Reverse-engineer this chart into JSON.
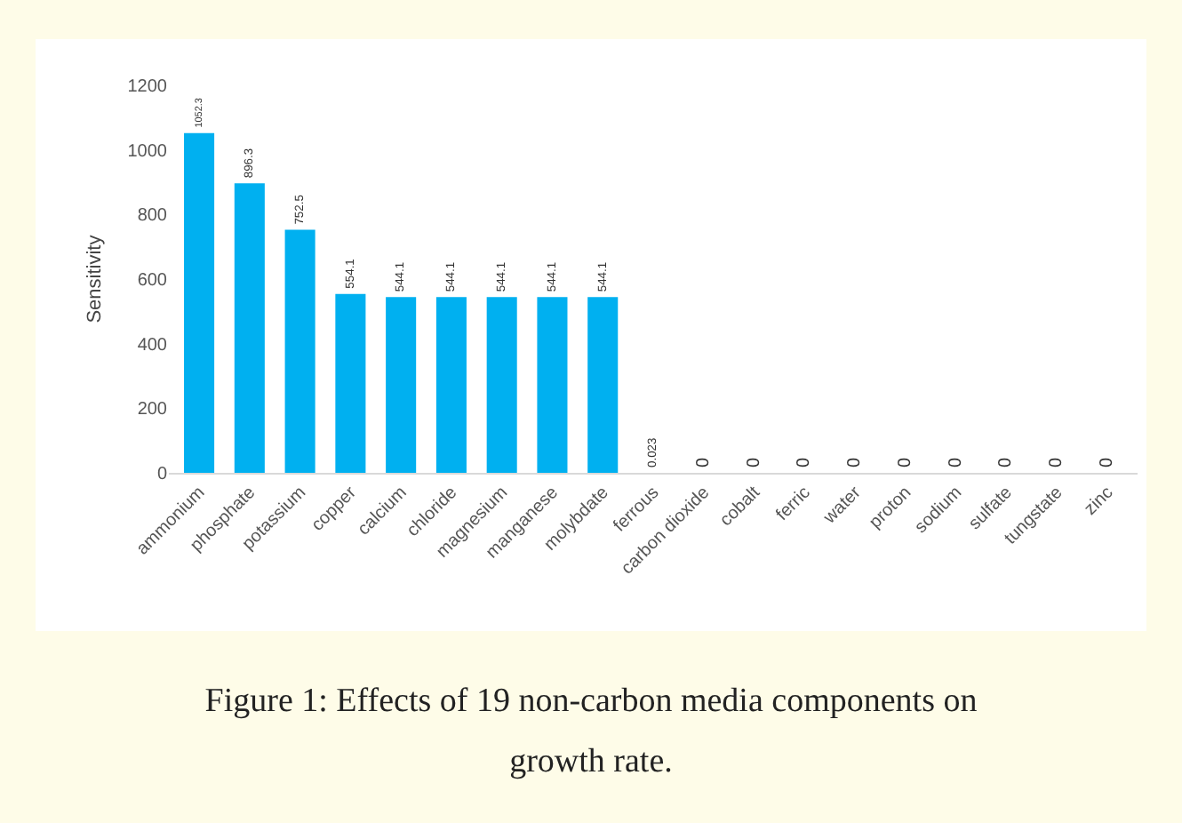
{
  "chart_data": {
    "type": "bar",
    "ylabel": "Sensitivity",
    "categories": [
      "ammonium",
      "phosphate",
      "potassium",
      "copper",
      "calcium",
      "chloride",
      "magnesium",
      "manganese",
      "molybdate",
      "ferrous",
      "carbon dioxide",
      "cobalt",
      "ferric",
      "water",
      "proton",
      "sodium",
      "sulfate",
      "tungstate",
      "zinc"
    ],
    "values": [
      1052.3,
      896.3,
      752.5,
      554.1,
      544.1,
      544.1,
      544.1,
      544.1,
      544.1,
      0.023,
      0,
      0,
      0,
      0,
      0,
      0,
      0,
      0,
      0
    ],
    "color": "#00b0f0",
    "ylim": [
      0,
      1200
    ],
    "yticks": [
      0,
      200,
      400,
      600,
      800,
      1000,
      1200
    ],
    "grid": false,
    "data_labels": true,
    "annotations": [
      "Figure 1: Effects of 19 non-carbon media components on growth rate."
    ]
  }
}
